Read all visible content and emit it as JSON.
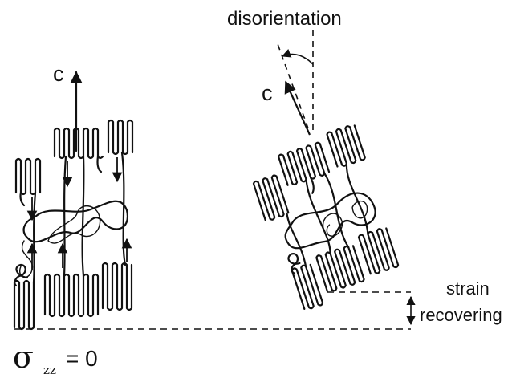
{
  "labels": {
    "axis_left": "c",
    "axis_right": "c",
    "disorientation": "disorientation",
    "strain_line1": "strain",
    "strain_line2": "recovering",
    "sigma_symbol": "σ",
    "sigma_subscript": "zz",
    "sigma_rest": " = 0"
  },
  "colors": {
    "ink": "#111111",
    "background": "#ffffff"
  }
}
